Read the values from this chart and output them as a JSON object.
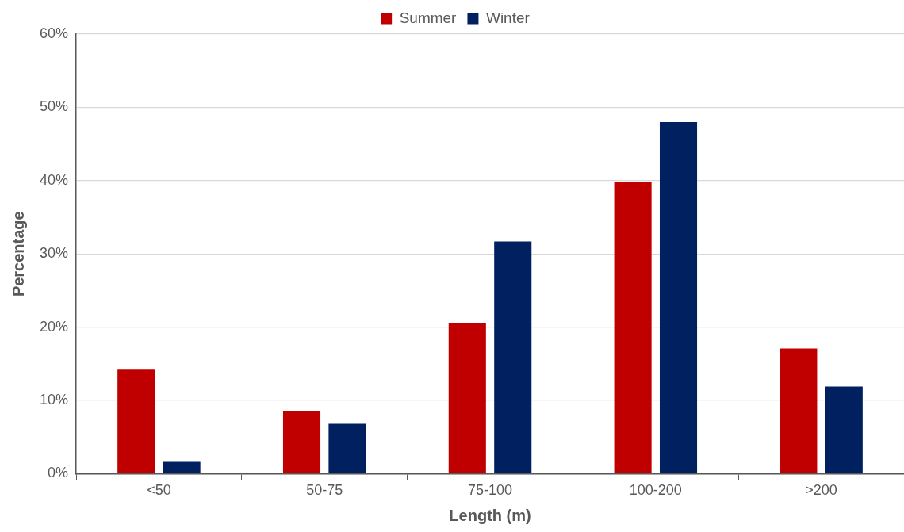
{
  "chart_data": {
    "type": "bar",
    "xlabel": "Length (m)",
    "ylabel": "Percentage",
    "categories": [
      "<50",
      "50-75",
      "75-100",
      "100-200",
      ">200"
    ],
    "series": [
      {
        "name": "Summer",
        "color": "#c00000",
        "values": [
          14.2,
          8.5,
          20.6,
          39.8,
          17.1
        ]
      },
      {
        "name": "Winter",
        "color": "#002060",
        "values": [
          1.6,
          6.8,
          31.7,
          48.0,
          11.9
        ]
      }
    ],
    "ylim": [
      0,
      60
    ],
    "yticks": [
      {
        "value": 0,
        "label": "0%"
      },
      {
        "value": 10,
        "label": "10%"
      },
      {
        "value": 20,
        "label": "20%"
      },
      {
        "value": 30,
        "label": "30%"
      },
      {
        "value": 40,
        "label": "40%"
      },
      {
        "value": 50,
        "label": "50%"
      },
      {
        "value": 60,
        "label": "60%"
      }
    ],
    "grid": "y",
    "legend": "top"
  }
}
